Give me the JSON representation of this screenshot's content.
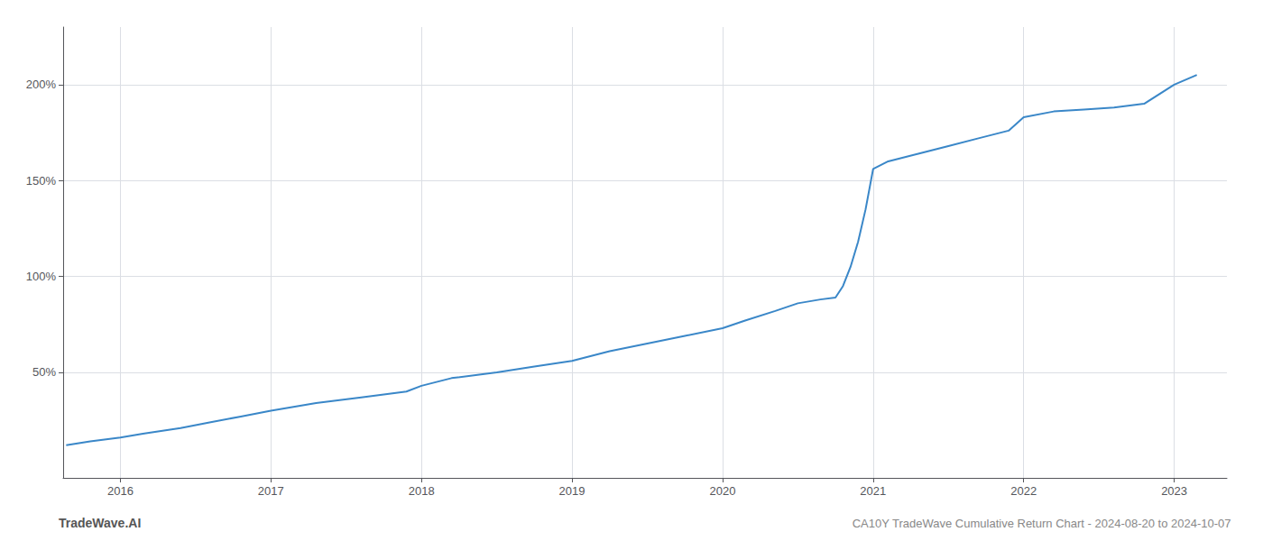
{
  "chart_data": {
    "type": "line",
    "title": "CA10Y TradeWave Cumulative Return Chart - 2024-08-20 to 2024-10-07",
    "annotations": [
      "TradeWave.AI"
    ],
    "color": "#3a87c8",
    "grid": true,
    "xlim": [
      2015.62,
      2023.35
    ],
    "xticks": [
      2016,
      2017,
      2018,
      2019,
      2020,
      2021,
      2022,
      2023
    ],
    "ylim": [
      -5,
      230
    ],
    "yticks": [
      {
        "value": 50,
        "label": "50%"
      },
      {
        "value": 100,
        "label": "100%"
      },
      {
        "value": 150,
        "label": "150%"
      },
      {
        "value": 200,
        "label": "200%"
      }
    ],
    "x": [
      2015.64,
      2015.8,
      2016.0,
      2016.15,
      2016.4,
      2016.6,
      2016.8,
      2017.0,
      2017.3,
      2017.6,
      2017.9,
      2018.0,
      2018.2,
      2018.5,
      2018.75,
      2019.0,
      2019.25,
      2019.5,
      2019.75,
      2020.0,
      2020.15,
      2020.35,
      2020.5,
      2020.65,
      2020.75,
      2020.8,
      2020.85,
      2020.9,
      2020.95,
      2021.0,
      2021.1,
      2021.3,
      2021.5,
      2021.7,
      2021.9,
      2022.0,
      2022.2,
      2022.4,
      2022.6,
      2022.8,
      2023.0,
      2023.15
    ],
    "values": [
      12,
      14,
      16,
      18,
      21,
      24,
      27,
      30,
      34,
      37,
      40,
      43,
      47,
      50,
      53,
      56,
      61,
      65,
      69,
      73,
      77,
      82,
      86,
      88,
      89,
      95,
      105,
      118,
      135,
      156,
      160,
      164,
      168,
      172,
      176,
      183,
      186,
      187,
      188,
      190,
      200,
      205
    ]
  }
}
